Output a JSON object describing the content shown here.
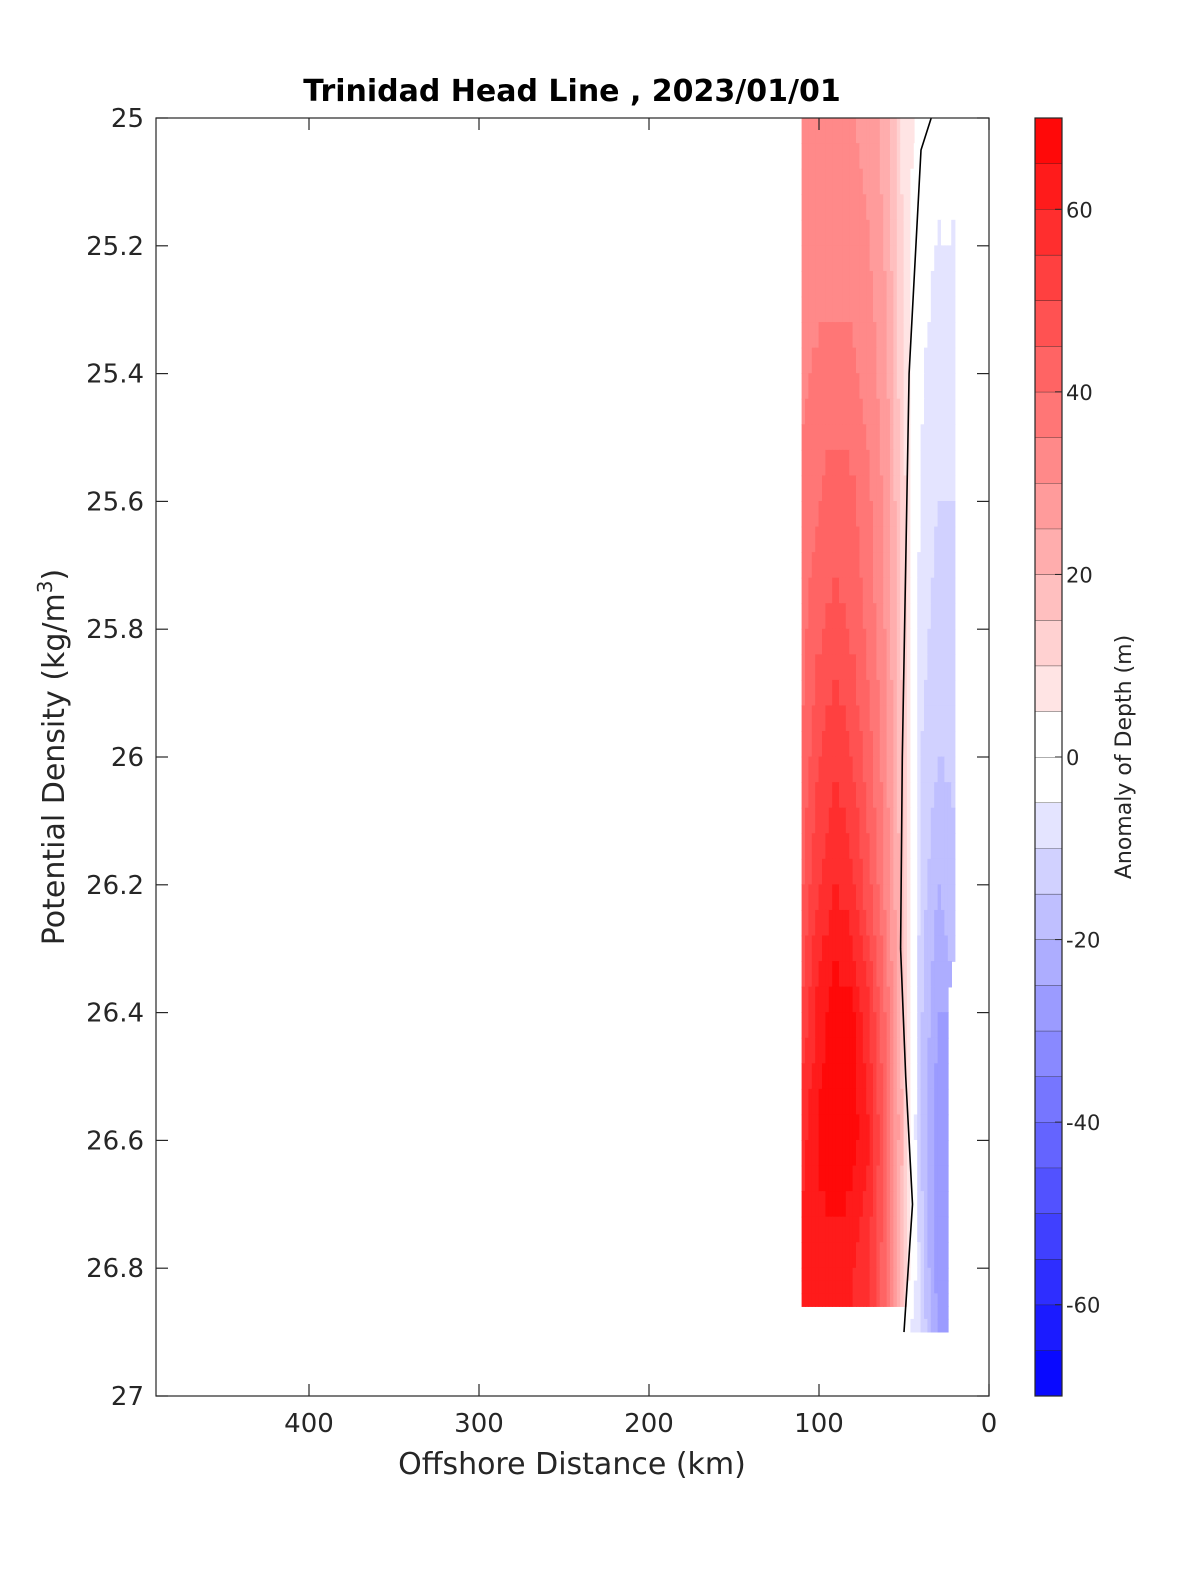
{
  "chart_data": {
    "type": "contourf",
    "title": "Trinidad Head Line , 2023/01/01",
    "xlabel": "Offshore Distance (km)",
    "ylabel_main": "Potential Density (kg/m",
    "ylabel_sup": "3",
    "ylabel_close": ")",
    "x_range": [
      490,
      0
    ],
    "x_reversed": true,
    "y_range": [
      25,
      27
    ],
    "y_reversed": true,
    "x_ticks": [
      400,
      300,
      200,
      100,
      0
    ],
    "y_ticks": [
      25,
      25.2,
      25.4,
      25.6,
      25.8,
      26,
      26.2,
      26.4,
      26.6,
      26.8,
      27
    ],
    "x_tick_labels": [
      "400",
      "300",
      "200",
      "100",
      "0"
    ],
    "y_tick_labels": [
      "25",
      "25.2",
      "25.4",
      "25.6",
      "25.8",
      "26",
      "26.2",
      "26.4",
      "26.6",
      "26.8",
      "27"
    ],
    "colorbar": {
      "label": "Anomaly of Depth (m)",
      "range": [
        -70,
        70
      ],
      "level_step": 5,
      "ticks": [
        60,
        40,
        20,
        0,
        -20,
        -40,
        -60
      ],
      "tick_labels": [
        "60",
        "40",
        "20",
        "0",
        "-20",
        "-40",
        "-60"
      ],
      "colormap": "blue-white-red",
      "negative_color": "#0000ff",
      "zero_color": "#ffffff",
      "positive_color": "#ff0000"
    },
    "zero_contour": [
      [
        34,
        25.0
      ],
      [
        40,
        25.05
      ],
      [
        43,
        25.2
      ],
      [
        47,
        25.4
      ],
      [
        49,
        25.7
      ],
      [
        51,
        26.0
      ],
      [
        52,
        26.3
      ],
      [
        49,
        26.5
      ],
      [
        45,
        26.7
      ],
      [
        50,
        26.9
      ]
    ],
    "data_columns_x": [
      110,
      100,
      90,
      80,
      70,
      60,
      50,
      40,
      30,
      20
    ],
    "data_rows_y": [
      25.0,
      25.2,
      25.4,
      25.6,
      25.8,
      26.0,
      26.2,
      26.4,
      26.6,
      26.8,
      26.9
    ],
    "anomaly_grid": [
      [
        30,
        30,
        30,
        30,
        28,
        22,
        8,
        null,
        null,
        null
      ],
      [
        32,
        33,
        33,
        33,
        30,
        24,
        9,
        -3,
        -5,
        -5
      ],
      [
        34,
        36,
        37,
        36,
        33,
        26,
        10,
        -4,
        -8,
        -8
      ],
      [
        36,
        40,
        43,
        41,
        36,
        28,
        12,
        -6,
        -10,
        -10
      ],
      [
        38,
        44,
        47,
        44,
        38,
        29,
        13,
        -8,
        -12,
        -12
      ],
      [
        40,
        50,
        54,
        50,
        42,
        31,
        14,
        -10,
        -15,
        -14
      ],
      [
        44,
        55,
        60,
        56,
        46,
        33,
        15,
        -12,
        -20,
        -16
      ],
      [
        50,
        62,
        68,
        66,
        55,
        38,
        17,
        -14,
        -25,
        null
      ],
      [
        58,
        66,
        70,
        68,
        60,
        42,
        18,
        -15,
        -28,
        null
      ],
      [
        62,
        62,
        62,
        60,
        55,
        40,
        15,
        -12,
        -28,
        null
      ],
      [
        null,
        null,
        null,
        null,
        null,
        null,
        null,
        -10,
        -25,
        null
      ]
    ]
  }
}
